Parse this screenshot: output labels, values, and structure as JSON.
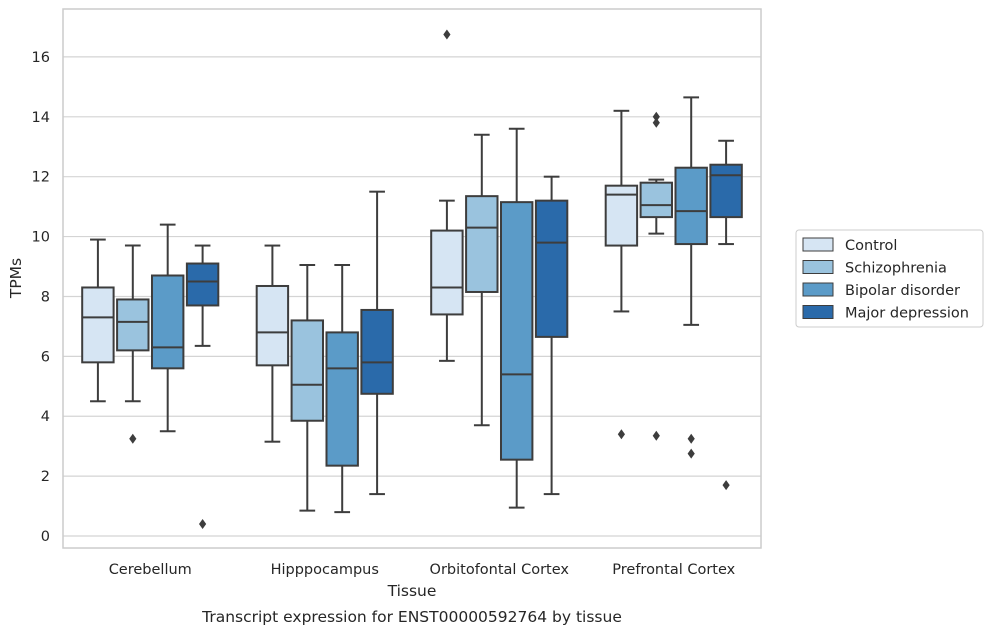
{
  "caption": "Transcript expression for ENST00000592764 by tissue",
  "chart_data": {
    "type": "box",
    "xlabel": "Tissue",
    "ylabel": "TPMs",
    "ylim": [
      -0.4,
      17.6
    ],
    "yticks": [
      0,
      2,
      4,
      6,
      8,
      10,
      12,
      14,
      16
    ],
    "grid": "horizontal",
    "legend_position": "right",
    "categories": [
      "Cerebellum",
      "Hipppocampus",
      "Orbitofontal Cortex",
      "Prefrontal Cortex"
    ],
    "series": [
      {
        "name": "Control",
        "color": "#d6e5f3",
        "boxes": [
          {
            "whislo": 4.5,
            "q1": 5.8,
            "med": 7.3,
            "q3": 8.3,
            "whishi": 9.9,
            "fliers": []
          },
          {
            "whislo": 3.15,
            "q1": 5.7,
            "med": 6.8,
            "q3": 8.35,
            "whishi": 9.7,
            "fliers": []
          },
          {
            "whislo": 5.85,
            "q1": 7.4,
            "med": 8.3,
            "q3": 10.2,
            "whishi": 11.2,
            "fliers": [
              16.75
            ]
          },
          {
            "whislo": 7.5,
            "q1": 9.7,
            "med": 11.4,
            "q3": 11.7,
            "whishi": 14.2,
            "fliers": [
              3.4
            ]
          }
        ]
      },
      {
        "name": "Schizophrenia",
        "color": "#9ac3de",
        "boxes": [
          {
            "whislo": 4.5,
            "q1": 6.2,
            "med": 7.15,
            "q3": 7.9,
            "whishi": 9.7,
            "fliers": [
              3.25
            ]
          },
          {
            "whislo": 0.85,
            "q1": 3.85,
            "med": 5.05,
            "q3": 7.2,
            "whishi": 9.05,
            "fliers": []
          },
          {
            "whislo": 3.7,
            "q1": 8.15,
            "med": 10.3,
            "q3": 11.35,
            "whishi": 13.4,
            "fliers": []
          },
          {
            "whislo": 10.1,
            "q1": 10.65,
            "med": 11.05,
            "q3": 11.8,
            "whishi": 11.9,
            "fliers": [
              14.0,
              13.8,
              3.35
            ]
          }
        ]
      },
      {
        "name": "Bipolar disorder",
        "color": "#5b9bc8",
        "boxes": [
          {
            "whislo": 3.5,
            "q1": 5.6,
            "med": 6.3,
            "q3": 8.7,
            "whishi": 10.4,
            "fliers": []
          },
          {
            "whislo": 0.8,
            "q1": 2.35,
            "med": 5.6,
            "q3": 6.8,
            "whishi": 9.05,
            "fliers": []
          },
          {
            "whislo": 0.95,
            "q1": 2.55,
            "med": 5.4,
            "q3": 11.15,
            "whishi": 13.6,
            "fliers": []
          },
          {
            "whislo": 7.05,
            "q1": 9.75,
            "med": 10.85,
            "q3": 12.3,
            "whishi": 14.65,
            "fliers": [
              3.25,
              2.75
            ]
          }
        ]
      },
      {
        "name": "Major depression",
        "color": "#2a6aaa",
        "boxes": [
          {
            "whislo": 6.35,
            "q1": 7.7,
            "med": 8.5,
            "q3": 9.1,
            "whishi": 9.7,
            "fliers": [
              0.4
            ]
          },
          {
            "whislo": 1.4,
            "q1": 4.75,
            "med": 5.8,
            "q3": 7.55,
            "whishi": 11.5,
            "fliers": []
          },
          {
            "whislo": 1.4,
            "q1": 6.65,
            "med": 9.8,
            "q3": 11.2,
            "whishi": 12.0,
            "fliers": []
          },
          {
            "whislo": 9.75,
            "q1": 10.65,
            "med": 12.05,
            "q3": 12.4,
            "whishi": 13.2,
            "fliers": [
              1.7
            ]
          }
        ]
      }
    ]
  }
}
